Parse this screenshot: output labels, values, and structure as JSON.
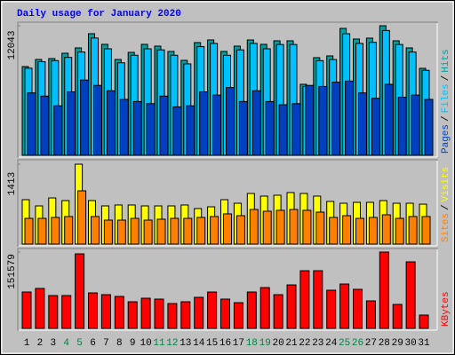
{
  "chart_data": [
    {
      "type": "bar",
      "title": "Daily usage for January 2020",
      "ylim": [
        0,
        12043
      ],
      "yticks": [
        12043
      ],
      "legend_separator": "/",
      "series": [
        {
          "name": "Pages",
          "color": "#0040c0",
          "values": [
            5800,
            5500,
            4600,
            5900,
            7000,
            6500,
            6000,
            5200,
            5000,
            4800,
            5500,
            4500,
            4600,
            5900,
            5600,
            6300,
            5000,
            6000,
            5000,
            4700,
            4800,
            6500,
            6400,
            6800,
            6900,
            5800,
            5300,
            6600,
            5400,
            5600,
            5200
          ]
        },
        {
          "name": "Files",
          "color": "#00c0ff",
          "values": [
            8100,
            8700,
            8800,
            9100,
            9600,
            10900,
            9900,
            8600,
            9300,
            9900,
            9800,
            9300,
            8500,
            10100,
            10400,
            9300,
            9800,
            10400,
            9900,
            10300,
            10300,
            6400,
            8800,
            8900,
            11300,
            10400,
            10500,
            11600,
            10300,
            9600,
            7900
          ]
        },
        {
          "name": "Hits",
          "color": "#00a0a0",
          "values": [
            8250,
            8910,
            8993,
            9488,
            9983,
            11303,
            10313,
            8910,
            9570,
            10313,
            10148,
            9653,
            8828,
            10478,
            10725,
            9653,
            10148,
            10725,
            10313,
            10643,
            10643,
            6600,
            9075,
            9240,
            11798,
            10808,
            10890,
            12043,
            10643,
            9983,
            8085
          ]
        }
      ]
    },
    {
      "type": "bar",
      "ylim": [
        0,
        1413
      ],
      "yticks": [
        1413
      ],
      "legend_separator": "/",
      "series": [
        {
          "name": "Sites",
          "color": "#ff8000",
          "values": [
            455,
            455,
            471,
            487,
            942,
            487,
            424,
            424,
            455,
            424,
            440,
            455,
            455,
            471,
            487,
            534,
            502,
            612,
            581,
            597,
            612,
            597,
            565,
            471,
            502,
            455,
            471,
            518,
            455,
            487,
            487
          ]
        },
        {
          "name": "Visits",
          "color": "#ffff00",
          "values": [
            785,
            675,
            816,
            769,
            1413,
            769,
            675,
            691,
            691,
            675,
            675,
            675,
            691,
            628,
            659,
            785,
            722,
            895,
            848,
            864,
            911,
            895,
            848,
            754,
            722,
            738,
            738,
            769,
            722,
            722,
            706
          ]
        }
      ]
    },
    {
      "type": "bar",
      "ylim": [
        0,
        151579
      ],
      "yticks": [
        151579
      ],
      "categories": [
        "1",
        "2",
        "3",
        "4",
        "5",
        "6",
        "7",
        "8",
        "9",
        "10",
        "11",
        "12",
        "13",
        "14",
        "15",
        "16",
        "17",
        "18",
        "19",
        "20",
        "21",
        "22",
        "23",
        "24",
        "25",
        "26",
        "27",
        "28",
        "29",
        "30",
        "31"
      ],
      "category_colors": [
        "#000000",
        "#000000",
        "#000000",
        "#008040",
        "#008040",
        "#000000",
        "#000000",
        "#000000",
        "#000000",
        "#000000",
        "#008040",
        "#008040",
        "#000000",
        "#000000",
        "#000000",
        "#000000",
        "#000000",
        "#008040",
        "#008040",
        "#000000",
        "#000000",
        "#000000",
        "#000000",
        "#000000",
        "#008040",
        "#008040",
        "#000000",
        "#000000",
        "#000000",
        "#000000",
        "#000000"
      ],
      "series": [
        {
          "name": "KBytes",
          "color": "#ff0000",
          "values": [
            72242,
            79290,
            65194,
            65194,
            148000,
            70480,
            66956,
            63432,
            52860,
            59908,
            58146,
            49336,
            52860,
            61670,
            72242,
            58146,
            51098,
            72242,
            81052,
            66956,
            86338,
            114530,
            114530,
            75766,
            88100,
            77528,
            54622,
            151579,
            47574,
            132150,
            26430
          ]
        }
      ]
    }
  ]
}
